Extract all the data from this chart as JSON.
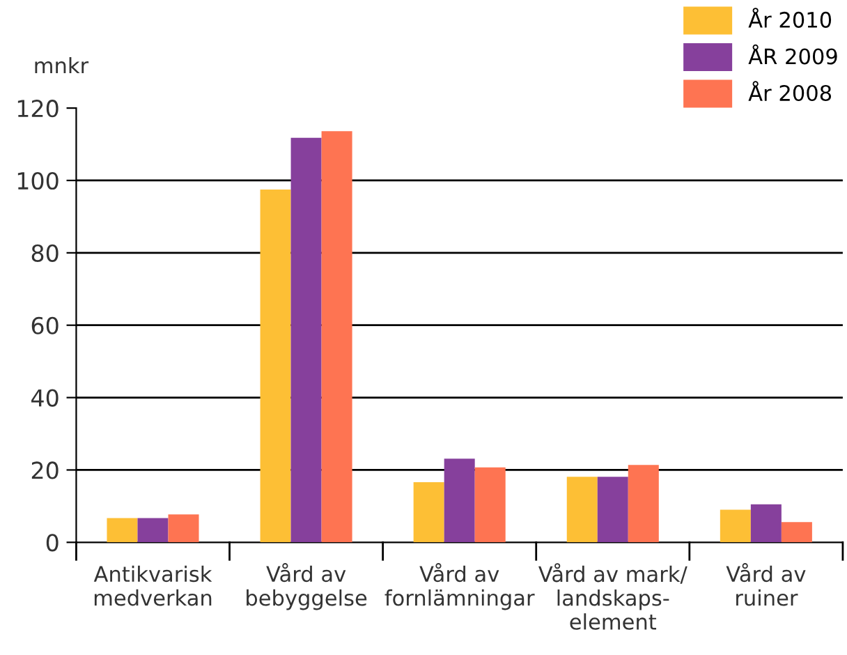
{
  "chart_data": {
    "type": "bar",
    "ylabel": "mnkr",
    "categories": [
      "Antikvarisk\nmedverkan",
      "Vård av\nbebyggelse",
      "Vård av\nfornlämningar",
      "Vård av mark/\nlandskaps-\nelement",
      "Vård av\nruiner"
    ],
    "series": [
      {
        "name": "År 2010",
        "color": "#fdbf35",
        "values": [
          6.7,
          97.5,
          16.6,
          18.1,
          9.0
        ]
      },
      {
        "name": "ÅR 2009",
        "color": "#86409c",
        "values": [
          6.7,
          111.8,
          23.1,
          18.1,
          10.5
        ]
      },
      {
        "name": "År 2008",
        "color": "#fe7452",
        "values": [
          7.7,
          113.6,
          20.7,
          21.4,
          5.6
        ]
      }
    ],
    "ylim": [
      0,
      120
    ],
    "yticks": [
      0,
      20,
      40,
      60,
      80,
      100,
      120
    ],
    "grid": "y",
    "legend": "top right"
  }
}
